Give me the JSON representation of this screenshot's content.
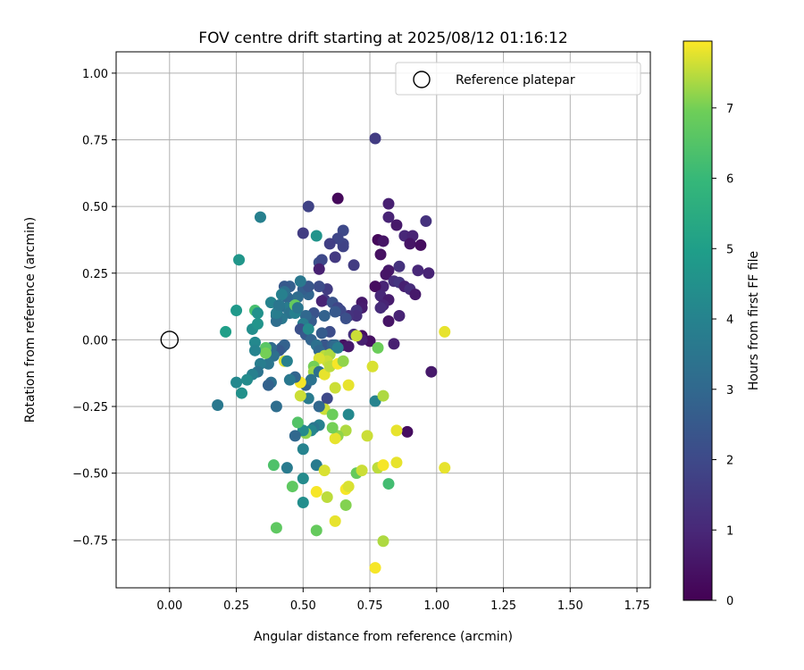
{
  "chart_data": {
    "type": "scatter",
    "title": "FOV centre drift starting at 2025/08/12 01:16:12",
    "xlabel": "Angular distance from reference (arcmin)",
    "ylabel": "Rotation from reference (arcmin)",
    "xlim": [
      -0.2,
      1.8
    ],
    "ylim": [
      -0.93,
      1.08
    ],
    "xticks": [
      "0.00",
      "0.25",
      "0.50",
      "0.75",
      "1.00",
      "1.25",
      "1.50",
      "1.75"
    ],
    "xtick_values": [
      0,
      0.25,
      0.5,
      0.75,
      1.0,
      1.25,
      1.5,
      1.75
    ],
    "yticks": [
      "−0.75",
      "−0.50",
      "−0.25",
      "0.00",
      "0.25",
      "0.50",
      "0.75",
      "1.00"
    ],
    "ytick_values": [
      -0.75,
      -0.5,
      -0.25,
      0,
      0.25,
      0.5,
      0.75,
      1.0
    ],
    "grid": true,
    "legend": {
      "placement": "top-right",
      "entries": [
        "Reference platepar"
      ]
    },
    "reference_point": {
      "x": 0.0,
      "y": 0.0
    },
    "colorbar": {
      "label": "Hours from first FF file",
      "colormap": "viridis",
      "min": 0,
      "max": 7.95,
      "ticks": [
        "0",
        "1",
        "2",
        "3",
        "4",
        "5",
        "6",
        "7"
      ],
      "tick_values": [
        0,
        1,
        2,
        3,
        4,
        5,
        6,
        7
      ]
    },
    "points": [
      [
        0.77,
        0.755,
        1.6
      ],
      [
        0.52,
        0.5,
        1.8
      ],
      [
        0.63,
        0.53,
        0.2
      ],
      [
        0.82,
        0.51,
        0.8
      ],
      [
        0.82,
        0.46,
        0.9
      ],
      [
        0.85,
        0.43,
        0.6
      ],
      [
        0.96,
        0.445,
        1.3
      ],
      [
        0.88,
        0.39,
        1.0
      ],
      [
        0.91,
        0.39,
        0.9
      ],
      [
        0.9,
        0.36,
        0.5
      ],
      [
        0.94,
        0.355,
        0.3
      ],
      [
        0.78,
        0.375,
        0.2
      ],
      [
        0.8,
        0.37,
        0.5
      ],
      [
        0.79,
        0.32,
        0.4
      ],
      [
        0.86,
        0.275,
        1.3
      ],
      [
        0.82,
        0.26,
        0.6
      ],
      [
        0.81,
        0.245,
        0.5
      ],
      [
        0.93,
        0.26,
        1.0
      ],
      [
        0.97,
        0.25,
        0.9
      ],
      [
        0.84,
        0.22,
        1.2
      ],
      [
        0.86,
        0.215,
        1.4
      ],
      [
        0.88,
        0.2,
        0.8
      ],
      [
        0.9,
        0.19,
        1.1
      ],
      [
        0.8,
        0.2,
        0.9
      ],
      [
        0.77,
        0.2,
        0.3
      ],
      [
        0.92,
        0.17,
        0.6
      ],
      [
        0.79,
        0.165,
        1.0
      ],
      [
        0.82,
        0.15,
        0.7
      ],
      [
        0.8,
        0.13,
        0.9
      ],
      [
        0.79,
        0.12,
        1.1
      ],
      [
        0.86,
        0.09,
        0.9
      ],
      [
        0.82,
        0.07,
        0.5
      ],
      [
        0.84,
        -0.015,
        0.8
      ],
      [
        0.89,
        -0.345,
        0.3
      ],
      [
        0.98,
        -0.12,
        0.6
      ],
      [
        0.72,
        0.14,
        0.6
      ],
      [
        0.72,
        0.12,
        0.7
      ],
      [
        0.7,
        0.11,
        1.4
      ],
      [
        0.69,
        0.28,
        1.6
      ],
      [
        0.7,
        0.09,
        1.2
      ],
      [
        0.72,
        0.015,
        0.3
      ],
      [
        0.75,
        -0.005,
        0.4
      ],
      [
        0.67,
        0.09,
        1.3
      ],
      [
        0.65,
        0.41,
        2.0
      ],
      [
        0.65,
        0.36,
        1.9
      ],
      [
        0.65,
        0.35,
        1.8
      ],
      [
        0.63,
        0.38,
        1.9
      ],
      [
        0.62,
        0.31,
        1.5
      ],
      [
        0.6,
        0.36,
        1.7
      ],
      [
        0.56,
        0.29,
        2.2
      ],
      [
        0.57,
        0.3,
        2.0
      ],
      [
        0.56,
        0.265,
        0.8
      ],
      [
        0.59,
        0.19,
        1.6
      ],
      [
        0.56,
        0.2,
        2.1
      ],
      [
        0.58,
        0.15,
        1.5
      ],
      [
        0.57,
        0.145,
        0.9
      ],
      [
        0.61,
        0.14,
        2.3
      ],
      [
        0.63,
        0.12,
        1.9
      ],
      [
        0.64,
        0.11,
        2.0
      ],
      [
        0.66,
        0.08,
        2.2
      ],
      [
        0.62,
        0.105,
        2.5
      ],
      [
        0.58,
        0.09,
        2.8
      ],
      [
        0.6,
        0.03,
        2.1
      ],
      [
        0.57,
        0.025,
        2.6
      ],
      [
        0.58,
        -0.02,
        2.4
      ],
      [
        0.61,
        -0.02,
        2.7
      ],
      [
        0.65,
        -0.02,
        0.4
      ],
      [
        0.67,
        -0.025,
        0.6
      ],
      [
        0.69,
        0.02,
        1.2
      ],
      [
        0.72,
        0.0,
        0.8
      ],
      [
        0.7,
        0.015,
        7.6
      ],
      [
        0.54,
        0.1,
        2.3
      ],
      [
        0.53,
        0.07,
        2.6
      ],
      [
        0.51,
        0.09,
        3.0
      ],
      [
        0.52,
        0.17,
        2.9
      ],
      [
        0.5,
        0.19,
        2.7
      ],
      [
        0.52,
        0.2,
        2.4
      ],
      [
        0.49,
        0.22,
        3.6
      ],
      [
        0.48,
        0.16,
        3.1
      ],
      [
        0.47,
        0.15,
        3.2
      ],
      [
        0.45,
        0.2,
        2.7
      ],
      [
        0.44,
        0.16,
        3.0
      ],
      [
        0.43,
        0.2,
        2.5
      ],
      [
        0.43,
        0.18,
        3.3
      ],
      [
        0.42,
        0.17,
        3.9
      ],
      [
        0.44,
        0.12,
        3.7
      ],
      [
        0.45,
        0.1,
        3.4
      ],
      [
        0.41,
        0.12,
        3.3
      ],
      [
        0.42,
        0.08,
        3.6
      ],
      [
        0.4,
        0.09,
        3.4
      ],
      [
        0.4,
        0.07,
        3.2
      ],
      [
        0.38,
        0.14,
        4.0
      ],
      [
        0.4,
        0.1,
        3.8
      ],
      [
        0.41,
        0.13,
        3.5
      ],
      [
        0.47,
        0.1,
        3.9
      ],
      [
        0.47,
        0.13,
        6.8
      ],
      [
        0.48,
        0.12,
        3.5
      ],
      [
        0.5,
        0.06,
        3.8
      ],
      [
        0.49,
        0.04,
        2.2
      ],
      [
        0.51,
        0.02,
        2.5
      ],
      [
        0.52,
        0.04,
        4.3
      ],
      [
        0.53,
        0.0,
        2.9
      ],
      [
        0.55,
        -0.02,
        3.3
      ],
      [
        0.56,
        -0.04,
        3.0
      ],
      [
        0.58,
        -0.06,
        7.5
      ],
      [
        0.6,
        -0.055,
        7.4
      ],
      [
        0.62,
        -0.02,
        3.1
      ],
      [
        0.63,
        -0.03,
        3.8
      ],
      [
        0.59,
        -0.08,
        7.6
      ],
      [
        0.56,
        -0.07,
        7.7
      ],
      [
        0.54,
        -0.1,
        7.0
      ],
      [
        0.54,
        -0.12,
        7.3
      ],
      [
        0.56,
        -0.12,
        3.3
      ],
      [
        0.58,
        -0.13,
        7.8
      ],
      [
        0.6,
        -0.1,
        7.5
      ],
      [
        0.63,
        -0.09,
        7.9
      ],
      [
        0.65,
        -0.08,
        7.2
      ],
      [
        0.62,
        -0.18,
        7.6
      ],
      [
        0.67,
        -0.17,
        7.8
      ],
      [
        0.59,
        -0.22,
        2.0
      ],
      [
        0.58,
        -0.26,
        7.6
      ],
      [
        0.56,
        -0.25,
        3.0
      ],
      [
        0.67,
        -0.28,
        4.2
      ],
      [
        0.66,
        -0.34,
        7.4
      ],
      [
        0.63,
        -0.36,
        7.2
      ],
      [
        0.62,
        -0.37,
        7.8
      ],
      [
        0.61,
        -0.33,
        7.0
      ],
      [
        0.61,
        -0.28,
        6.9
      ],
      [
        0.56,
        -0.32,
        3.9
      ],
      [
        0.54,
        -0.33,
        3.5
      ],
      [
        0.53,
        -0.34,
        4.1
      ],
      [
        0.51,
        -0.35,
        7.2
      ],
      [
        0.5,
        -0.34,
        4.3
      ],
      [
        0.5,
        -0.41,
        4.0
      ],
      [
        0.48,
        -0.31,
        6.5
      ],
      [
        0.52,
        -0.22,
        3.7
      ],
      [
        0.51,
        -0.17,
        2.8
      ],
      [
        0.53,
        -0.15,
        3.4
      ],
      [
        0.49,
        -0.16,
        7.9
      ],
      [
        0.49,
        -0.21,
        7.6
      ],
      [
        0.47,
        -0.14,
        2.9
      ],
      [
        0.45,
        -0.15,
        3.6
      ],
      [
        0.43,
        -0.08,
        7.7
      ],
      [
        0.44,
        -0.08,
        3.9
      ],
      [
        0.42,
        -0.03,
        3.0
      ],
      [
        0.43,
        -0.02,
        2.8
      ],
      [
        0.41,
        -0.04,
        2.5
      ],
      [
        0.39,
        -0.06,
        3.3
      ],
      [
        0.38,
        -0.03,
        3.1
      ],
      [
        0.37,
        -0.09,
        3.5
      ],
      [
        0.38,
        -0.16,
        3.3
      ],
      [
        0.37,
        -0.17,
        2.8
      ],
      [
        0.36,
        -0.03,
        6.6
      ],
      [
        0.36,
        -0.05,
        7.0
      ],
      [
        0.34,
        -0.09,
        3.8
      ],
      [
        0.33,
        -0.12,
        3.4
      ],
      [
        0.31,
        -0.13,
        3.9
      ],
      [
        0.29,
        -0.15,
        4.3
      ],
      [
        0.27,
        -0.2,
        4.5
      ],
      [
        0.25,
        -0.16,
        4.2
      ],
      [
        0.18,
        -0.245,
        3.6
      ],
      [
        0.21,
        0.03,
        5.0
      ],
      [
        0.25,
        0.11,
        4.8
      ],
      [
        0.26,
        0.3,
        4.7
      ],
      [
        0.34,
        0.46,
        3.9
      ],
      [
        0.32,
        0.11,
        6.3
      ],
      [
        0.33,
        0.1,
        4.5
      ],
      [
        0.31,
        0.04,
        4.4
      ],
      [
        0.32,
        -0.01,
        4.2
      ],
      [
        0.32,
        -0.04,
        4.0
      ],
      [
        0.33,
        0.06,
        4.6
      ],
      [
        0.4,
        -0.25,
        3.2
      ],
      [
        0.5,
        0.4,
        1.6
      ],
      [
        0.55,
        0.39,
        4.6
      ],
      [
        0.44,
        -0.48,
        3.7
      ],
      [
        0.47,
        -0.36,
        3.0
      ],
      [
        0.39,
        -0.47,
        6.4
      ],
      [
        0.46,
        -0.55,
        6.7
      ],
      [
        0.5,
        -0.52,
        4.3
      ],
      [
        0.5,
        -0.61,
        4.4
      ],
      [
        0.4,
        -0.705,
        6.7
      ],
      [
        0.55,
        -0.715,
        6.8
      ],
      [
        0.55,
        -0.47,
        3.7
      ],
      [
        0.55,
        -0.57,
        7.9
      ],
      [
        0.58,
        -0.49,
        7.7
      ],
      [
        0.59,
        -0.59,
        7.5
      ],
      [
        0.62,
        -0.68,
        7.8
      ],
      [
        0.66,
        -0.56,
        7.9
      ],
      [
        0.66,
        -0.62,
        7.1
      ],
      [
        0.67,
        -0.55,
        7.7
      ],
      [
        0.7,
        -0.5,
        6.8
      ],
      [
        0.72,
        -0.49,
        7.6
      ],
      [
        0.78,
        -0.48,
        7.5
      ],
      [
        0.8,
        -0.47,
        7.9
      ],
      [
        0.85,
        -0.46,
        7.8
      ],
      [
        0.82,
        -0.54,
        6.2
      ],
      [
        0.8,
        -0.755,
        7.4
      ],
      [
        0.77,
        -0.855,
        7.9
      ],
      [
        0.74,
        -0.36,
        7.6
      ],
      [
        0.76,
        -0.1,
        7.7
      ],
      [
        0.77,
        -0.23,
        4.0
      ],
      [
        0.78,
        -0.03,
        6.9
      ],
      [
        0.8,
        -0.21,
        7.4
      ],
      [
        0.85,
        -0.34,
        7.8
      ],
      [
        1.03,
        0.03,
        7.8
      ],
      [
        1.03,
        -0.48,
        7.8
      ]
    ]
  }
}
